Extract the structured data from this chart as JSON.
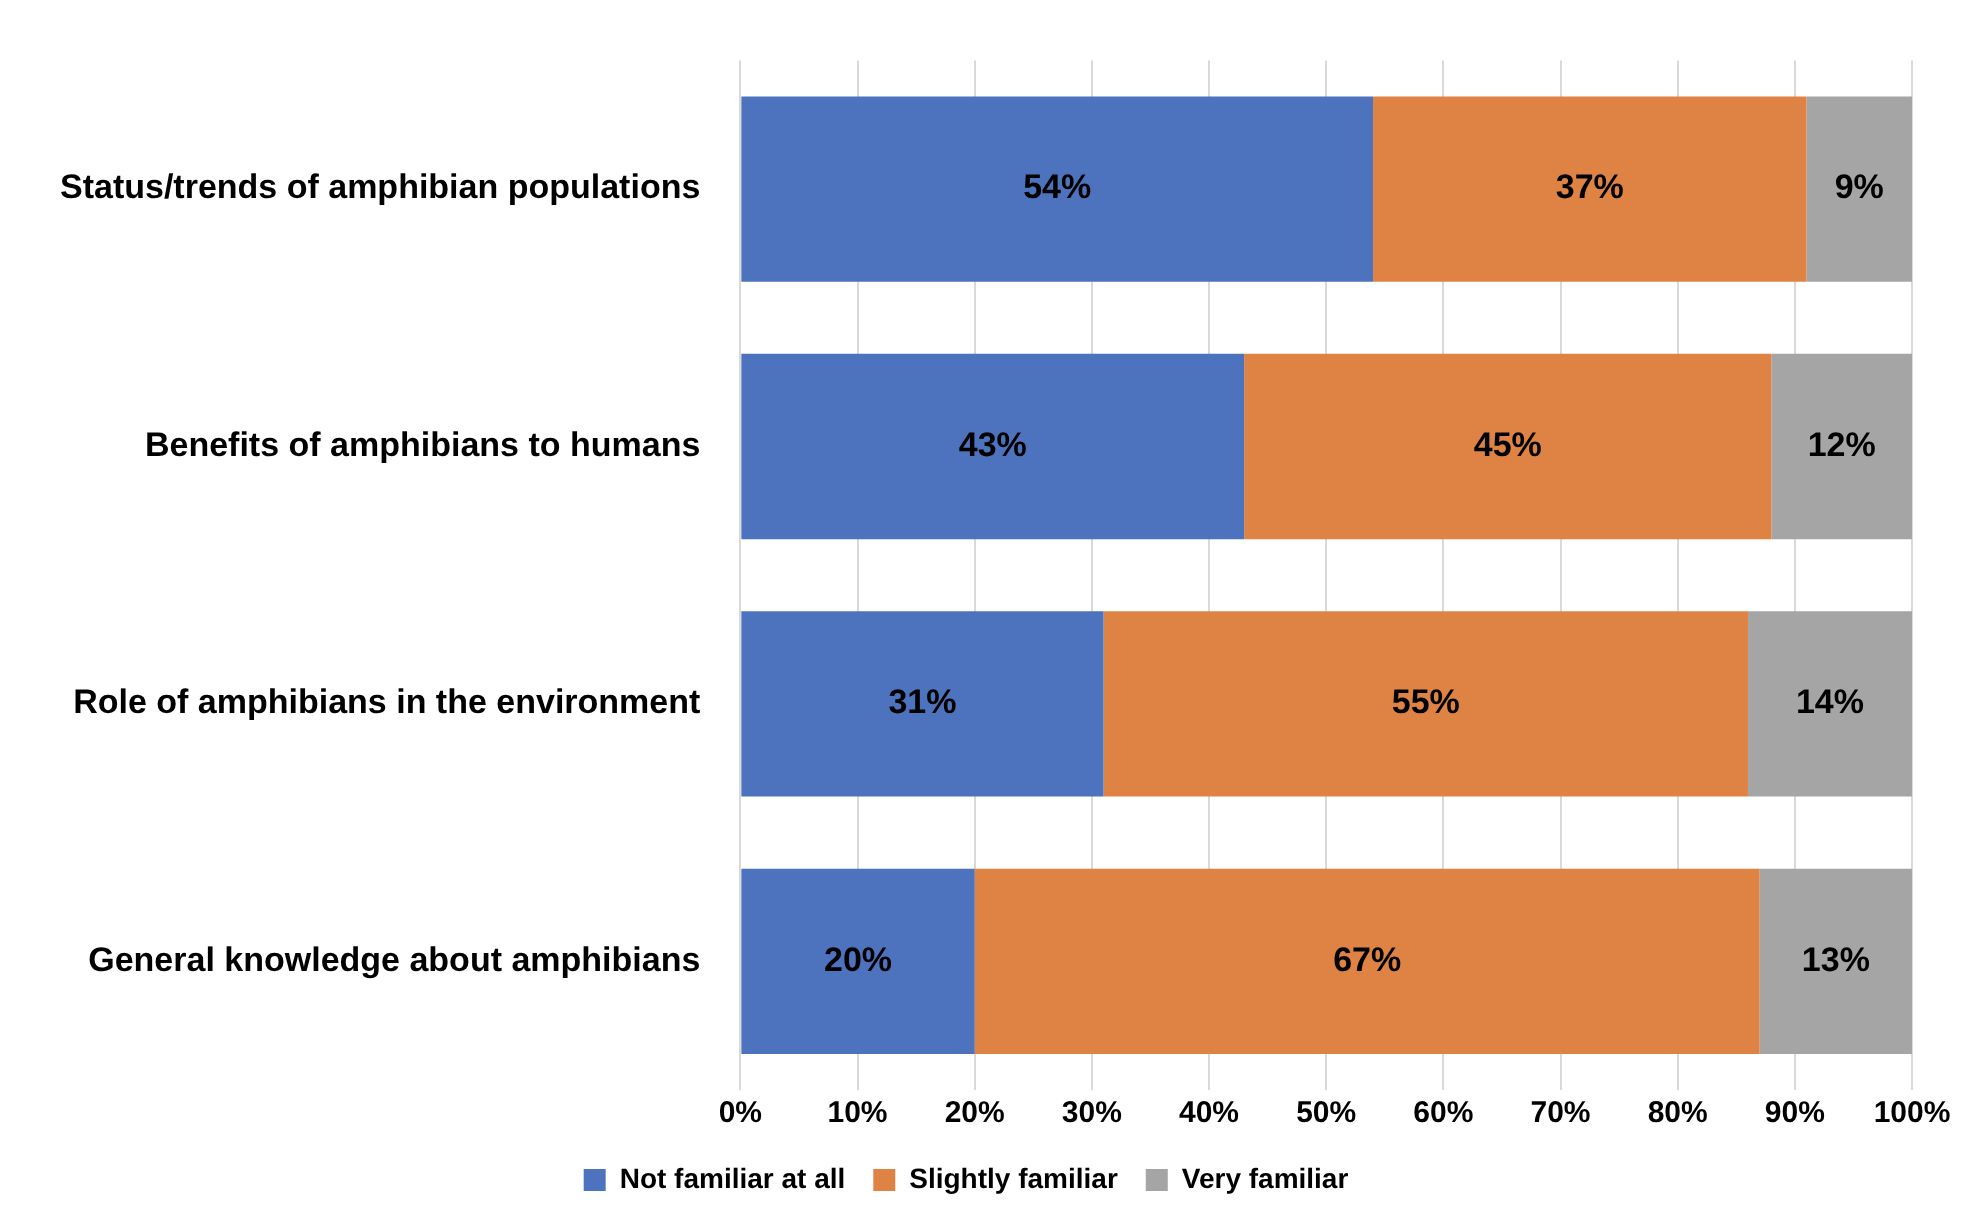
{
  "chart_data": {
    "type": "bar",
    "orientation": "horizontal",
    "stacked": true,
    "categories": [
      "Status/trends of amphibian populations",
      "Benefits of amphibians to humans",
      "Role of amphibians in the environment",
      "General knowledge about amphibians"
    ],
    "series": [
      {
        "name": "Not familiar at all",
        "color": "#4e73be",
        "values": [
          54,
          43,
          31,
          20
        ],
        "value_labels": [
          "54%",
          "43%",
          "31%",
          "20%"
        ]
      },
      {
        "name": "Slightly familiar",
        "color": "#df8344",
        "values": [
          37,
          45,
          55,
          67
        ],
        "value_labels": [
          "37%",
          "45%",
          "55%",
          "67%"
        ]
      },
      {
        "name": "Very familiar",
        "color": "#a5a5a5",
        "values": [
          9,
          12,
          14,
          13
        ],
        "value_labels": [
          "9%",
          "12%",
          "14%",
          "13%"
        ]
      }
    ],
    "xlim": [
      0,
      100
    ],
    "xticks": [
      {
        "value": 0,
        "label": "0%"
      },
      {
        "value": 10,
        "label": "10%"
      },
      {
        "value": 20,
        "label": "20%"
      },
      {
        "value": 30,
        "label": "30%"
      },
      {
        "value": 40,
        "label": "40%"
      },
      {
        "value": 50,
        "label": "50%"
      },
      {
        "value": 60,
        "label": "60%"
      },
      {
        "value": 70,
        "label": "70%"
      },
      {
        "value": 80,
        "label": "80%"
      },
      {
        "value": 90,
        "label": "90%"
      },
      {
        "value": 100,
        "label": "100%"
      }
    ],
    "grid": "x",
    "legend": "bottom"
  }
}
